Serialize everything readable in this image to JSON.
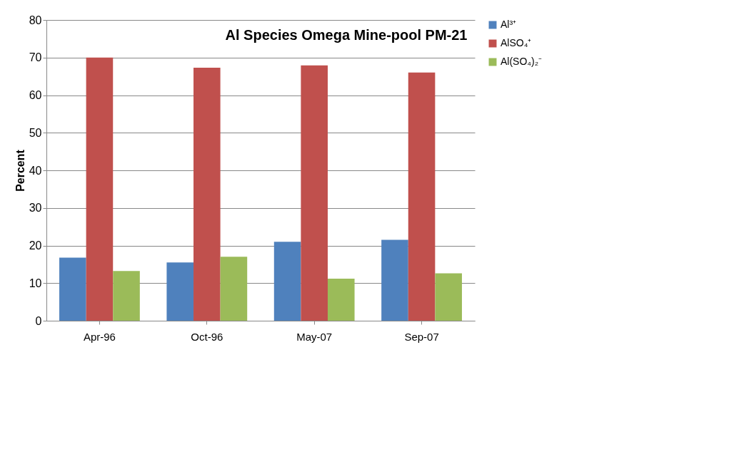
{
  "chart_data": {
    "type": "bar",
    "title": "Al Species Omega Mine-pool PM-21",
    "ylabel": "Percent",
    "categories": [
      "Apr-96",
      "Oct-96",
      "May-07",
      "Sep-07"
    ],
    "series": [
      {
        "name": "Al³⁺",
        "color": "#4f81bd",
        "values": [
          16.8,
          15.5,
          21,
          21.5
        ]
      },
      {
        "name": "AlSO₄⁺",
        "color": "#c0504d",
        "values": [
          70,
          67.3,
          67.9,
          66
        ]
      },
      {
        "name": "Al(SO₄)₂⁻",
        "color": "#9bbb59",
        "values": [
          13.2,
          17,
          11.2,
          12.6
        ]
      }
    ],
    "ylim": [
      0,
      80
    ],
    "yticks": [
      0,
      10,
      20,
      30,
      40,
      50,
      60,
      70,
      80
    ],
    "grid": "y",
    "legend": "right"
  }
}
